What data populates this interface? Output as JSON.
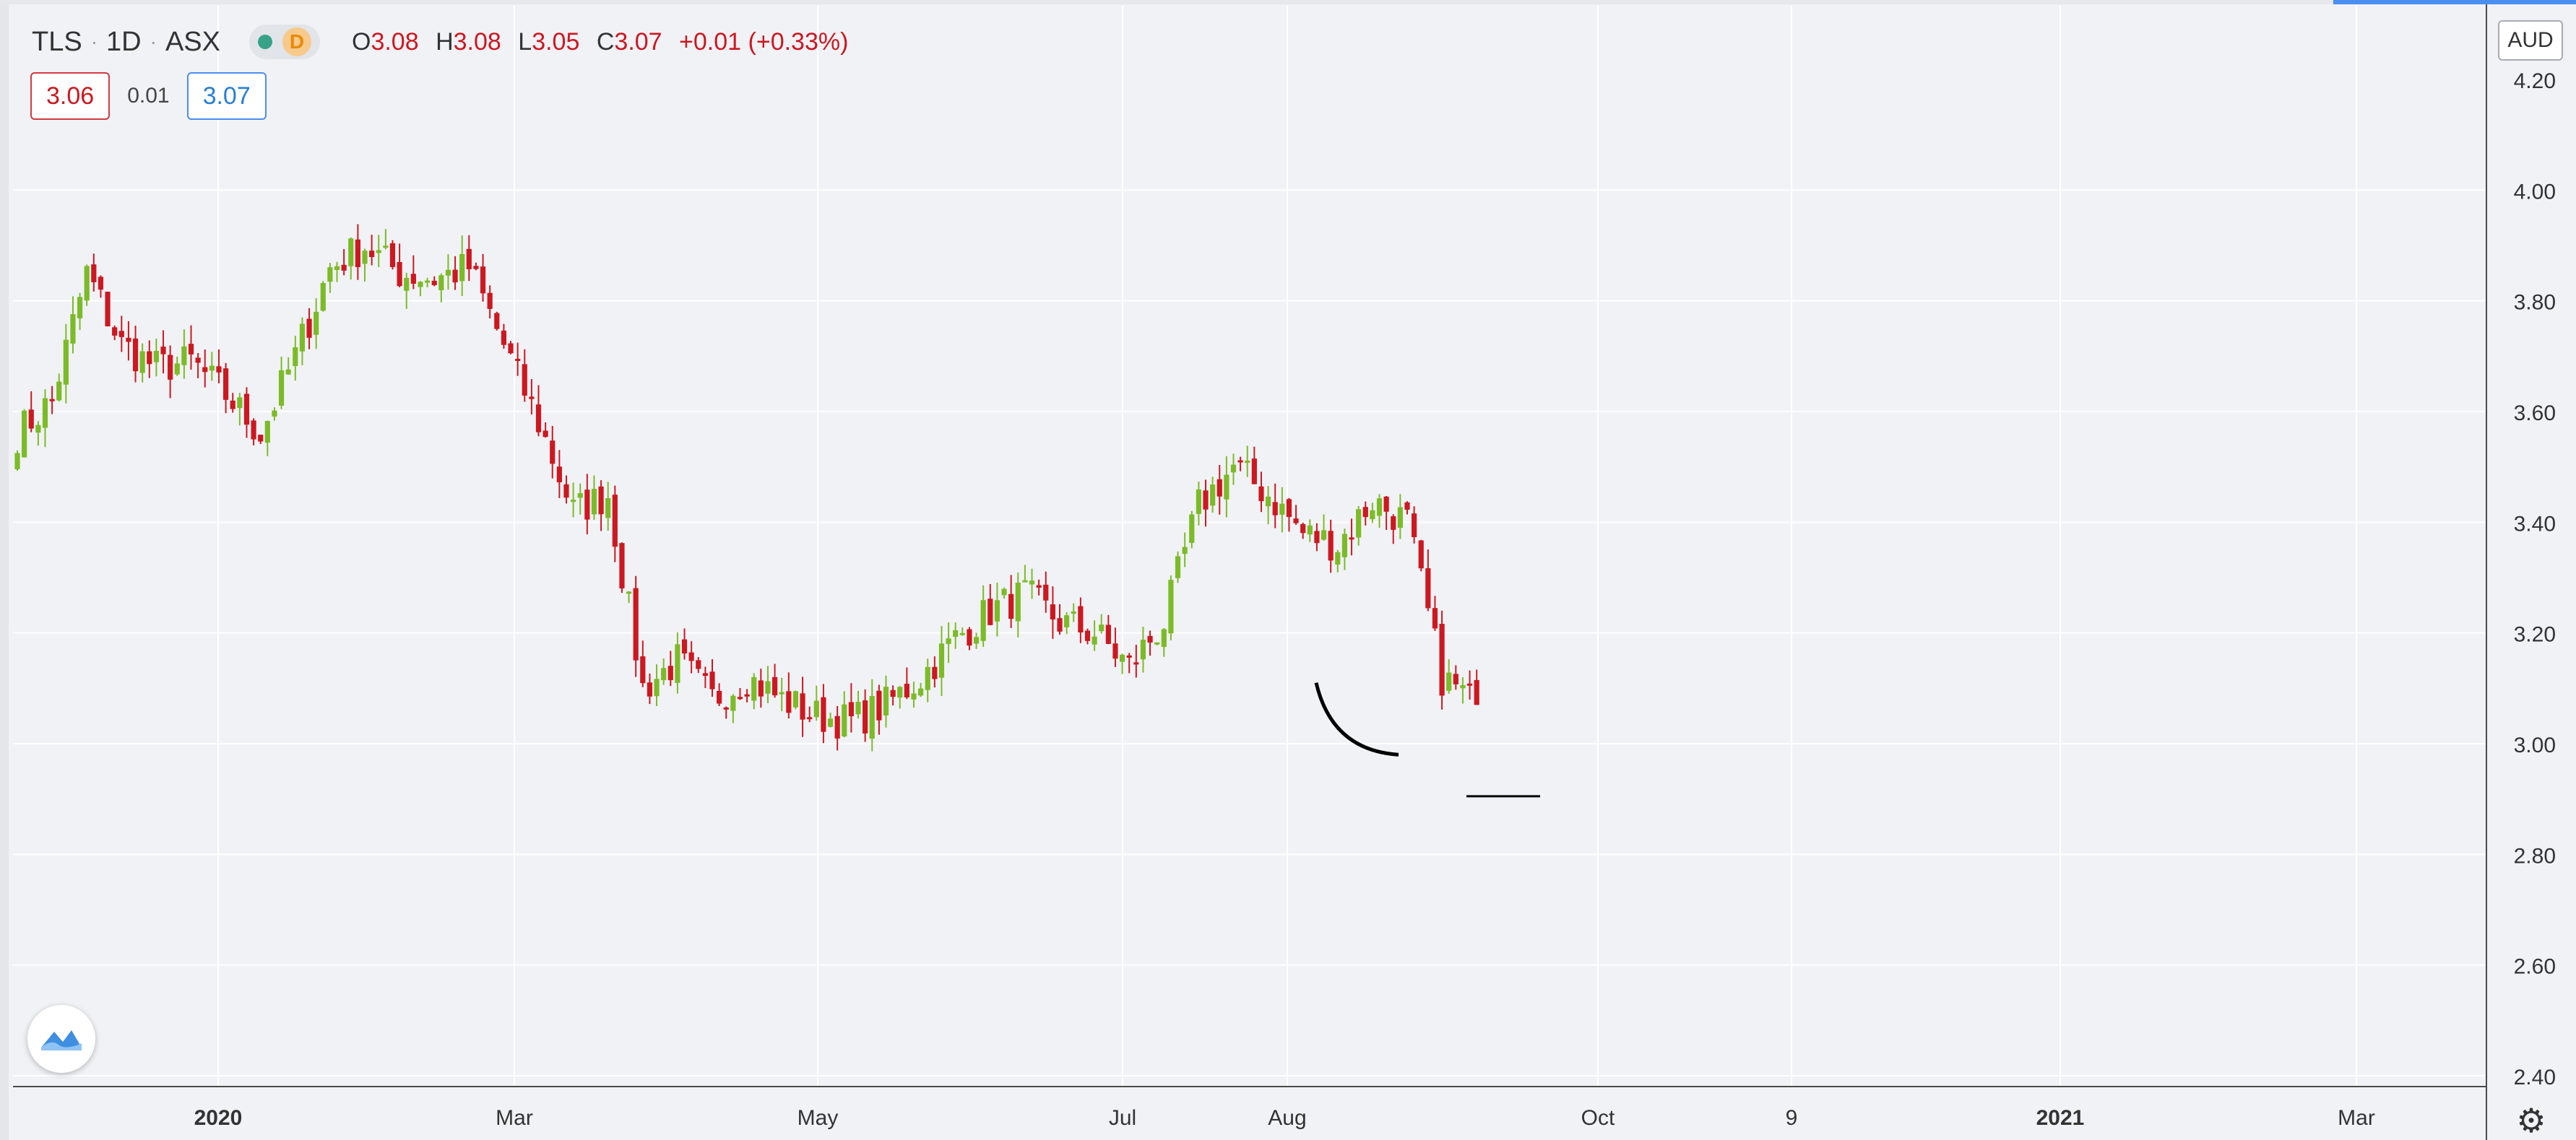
{
  "header": {
    "symbol": "TLS",
    "interval": "1D",
    "exchange": "ASX",
    "separator": "·",
    "market_status": "D",
    "ohlc": {
      "o_label": "O",
      "o_value": "3.08",
      "h_label": "H",
      "h_value": "3.08",
      "l_label": "L",
      "l_value": "3.05",
      "c_label": "C",
      "c_value": "3.07",
      "change": "+0.01 (+0.33%)"
    },
    "bid": "3.06",
    "spread": "0.01",
    "ask": "3.07"
  },
  "currency_label": "AUD",
  "colors": {
    "up": "#7cbb28",
    "down": "#cc1820",
    "grid": "#ffffff",
    "background": "#f1f2f6",
    "axis_text": "#333333",
    "accent": "#4a8ef0"
  },
  "icons": {
    "logo": "tradingview-logo-icon",
    "settings": "gear-icon"
  },
  "chart_data": {
    "type": "candlestick",
    "title": "",
    "xlabel": "",
    "ylabel": "",
    "ylim": [
      2.4,
      4.2
    ],
    "y_ticks": [
      "4.20",
      "4.00",
      "3.80",
      "3.60",
      "3.40",
      "3.20",
      "3.00",
      "2.80",
      "2.60",
      "2.40"
    ],
    "x_ticks": [
      "2020",
      "Mar",
      "May",
      "Jul",
      "Aug",
      "Oct",
      "9",
      "2021",
      "Mar"
    ],
    "grid": true,
    "weekly_closes": [
      3.56,
      3.62,
      3.85,
      3.72,
      3.68,
      3.69,
      3.63,
      3.56,
      3.7,
      3.86,
      3.9,
      3.85,
      3.84,
      3.86,
      3.72,
      3.58,
      3.42,
      3.45,
      3.1,
      3.15,
      3.08,
      3.12,
      3.08,
      3.05,
      3.04,
      3.07,
      3.12,
      3.19,
      3.24,
      3.27,
      3.22,
      3.2,
      3.14,
      3.22,
      3.43,
      3.5,
      3.45,
      3.38,
      3.36,
      3.44,
      3.4,
      3.12,
      3.07
    ],
    "annotations": {
      "arc": {
        "from": [
          3.11,
          3.09
        ],
        "to": [
          2.98,
          3.06
        ]
      },
      "support_level": 2.905
    }
  }
}
